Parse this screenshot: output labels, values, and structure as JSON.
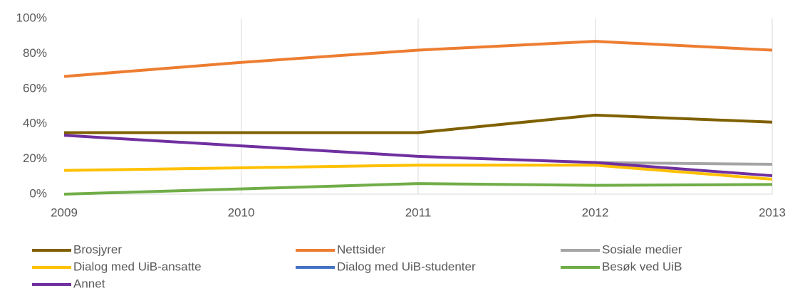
{
  "chart_data": {
    "type": "line",
    "categories": [
      "2009",
      "2010",
      "2011",
      "2012",
      "2013"
    ],
    "series": [
      {
        "name": "Brosjyrer",
        "color": "#7f6000",
        "values": [
          35,
          35,
          35,
          45,
          41
        ]
      },
      {
        "name": "Nettsider",
        "color": "#ed7d31",
        "values": [
          67,
          75,
          82,
          87,
          82
        ]
      },
      {
        "name": "Sosiale medier",
        "color": "#a5a5a5",
        "values": [
          null,
          null,
          null,
          18,
          17
        ]
      },
      {
        "name": "Dialog med UiB-ansatte",
        "color": "#ffc000",
        "values": [
          13.5,
          15,
          16.5,
          16.5,
          8.5
        ]
      },
      {
        "name": "Dialog med UiB-studenter",
        "color": "#4472c4",
        "values": [
          null,
          null,
          null,
          null,
          null
        ]
      },
      {
        "name": "Besøk ved UiB",
        "color": "#70ad47",
        "values": [
          0,
          3,
          6,
          5,
          5.5
        ]
      },
      {
        "name": "Annet",
        "color": "#7030a0",
        "values": [
          33.5,
          27.5,
          21.5,
          18,
          10.5
        ]
      }
    ],
    "ylim": [
      0,
      100
    ],
    "yticks": [
      {
        "value": 0,
        "label": "0%"
      },
      {
        "value": 20,
        "label": "20%"
      },
      {
        "value": 40,
        "label": "40%"
      },
      {
        "value": 60,
        "label": "60%"
      },
      {
        "value": 80,
        "label": "80%"
      },
      {
        "value": 100,
        "label": "100%"
      }
    ],
    "grid": true
  }
}
